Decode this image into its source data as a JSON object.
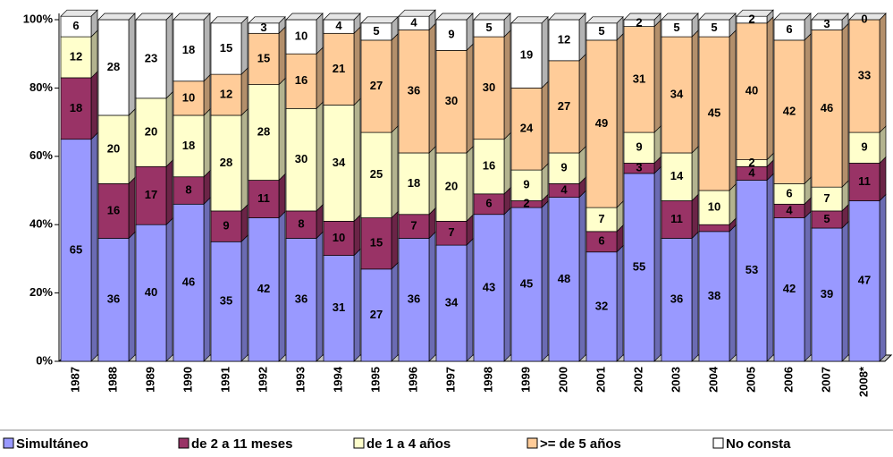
{
  "chart_data": {
    "type": "stacked_bar_3d",
    "categories": [
      "1987",
      "1988",
      "1989",
      "1990",
      "1991",
      "1992",
      "1993",
      "1994",
      "1995",
      "1996",
      "1997",
      "1998",
      "1999",
      "2000",
      "2001",
      "2002",
      "2003",
      "2004",
      "2005",
      "2006",
      "2007",
      "2008*"
    ],
    "ylim": [
      0,
      100
    ],
    "yticks": [
      {
        "value": 0,
        "label": "0%"
      },
      {
        "value": 20,
        "label": "20%"
      },
      {
        "value": 40,
        "label": "40%"
      },
      {
        "value": 60,
        "label": "60%"
      },
      {
        "value": 80,
        "label": "80%"
      },
      {
        "value": 100,
        "label": "100%"
      }
    ],
    "series": [
      {
        "name": "Simultáneo",
        "color": "#9999ff",
        "values": [
          65,
          36,
          40,
          46,
          35,
          42,
          36,
          31,
          27,
          36,
          34,
          43,
          45,
          48,
          32,
          55,
          36,
          38,
          53,
          42,
          39,
          47
        ],
        "value_labels": [
          "65",
          "36",
          "40",
          "46",
          "35",
          "42",
          "36",
          "31",
          "27",
          "36",
          "34",
          "43",
          "45",
          "48",
          "32",
          "55",
          "36",
          "38",
          "53",
          "42",
          "39",
          "47"
        ]
      },
      {
        "name": "de 2 a 11 meses",
        "color": "#993366",
        "values": [
          18,
          16,
          17,
          8,
          9,
          11,
          8,
          10,
          15,
          7,
          7,
          6,
          2,
          4,
          6,
          3,
          11,
          2,
          4,
          4,
          5,
          11
        ],
        "value_labels": [
          "18",
          "16",
          "17",
          "8",
          "9",
          "11",
          "8",
          "10",
          "15",
          "7",
          "7",
          "6",
          "2",
          "4",
          "6",
          "3",
          "11",
          null,
          "4",
          "4",
          "5",
          "11"
        ]
      },
      {
        "name": "de 1 a 4 años",
        "color": "#ffffcc",
        "values": [
          12,
          20,
          20,
          18,
          28,
          28,
          30,
          34,
          25,
          18,
          20,
          16,
          9,
          9,
          7,
          9,
          14,
          10,
          2,
          6,
          7,
          9
        ],
        "value_labels": [
          "12",
          "20",
          "20",
          "18",
          "28",
          "28",
          "30",
          "34",
          "25",
          "18",
          "20",
          "16",
          "9",
          "9",
          "7",
          "9",
          "14",
          "10",
          "2",
          "6",
          "7",
          "9"
        ]
      },
      {
        "name": ">= de 5 años",
        "color": "#ffcc99",
        "values": [
          0,
          0,
          0,
          10,
          12,
          15,
          16,
          21,
          27,
          36,
          30,
          30,
          24,
          27,
          49,
          31,
          34,
          45,
          40,
          42,
          46,
          33
        ],
        "value_labels": [
          null,
          null,
          null,
          "10",
          "12",
          "15",
          "16",
          "21",
          "27",
          "36",
          "30",
          "30",
          "24",
          "27",
          "49",
          "31",
          "34",
          "45",
          "40",
          "42",
          "46",
          "33"
        ]
      },
      {
        "name": "No consta",
        "color": "#ffffff",
        "values": [
          6,
          28,
          23,
          18,
          15,
          3,
          10,
          4,
          5,
          4,
          9,
          5,
          19,
          12,
          5,
          2,
          5,
          5,
          2,
          6,
          3,
          0
        ],
        "value_labels": [
          "6",
          "28",
          "23",
          "18",
          "15",
          "3",
          "10",
          "4",
          "5",
          "4",
          "9",
          "5",
          "19",
          "12",
          "5",
          "2",
          "5",
          "5",
          "2",
          "6",
          "3",
          "0"
        ]
      }
    ]
  }
}
